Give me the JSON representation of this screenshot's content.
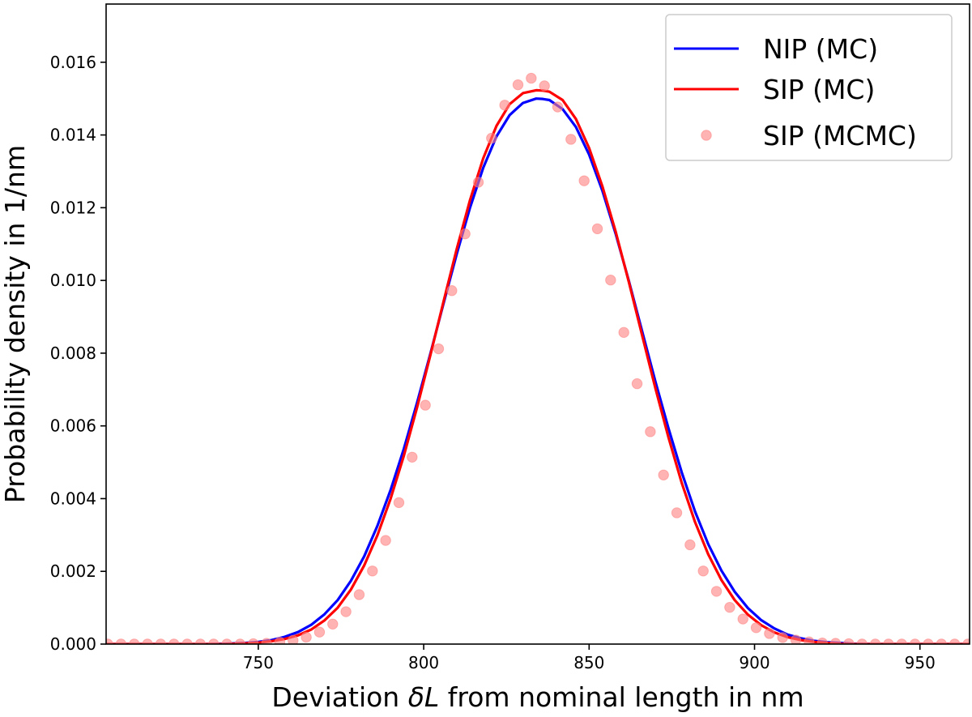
{
  "chart_data": {
    "type": "line",
    "xlabel_parts": {
      "prefix": "Deviation ",
      "symbol": "δL",
      "suffix": " from nominal length in nm"
    },
    "ylabel": "Probability density in 1/nm",
    "xlim": [
      704,
      965
    ],
    "ylim": [
      0,
      0.0176
    ],
    "xticks": [
      750,
      800,
      850,
      900,
      950
    ],
    "xtick_labels": [
      "750",
      "800",
      "850",
      "900",
      "950"
    ],
    "yticks": [
      0,
      0.002,
      0.004,
      0.006,
      0.008,
      0.01,
      0.012,
      0.014,
      0.016
    ],
    "ytick_labels": [
      "0.000",
      "0.002",
      "0.004",
      "0.006",
      "0.008",
      "0.010",
      "0.012",
      "0.014",
      "0.016"
    ],
    "grid": false,
    "legend_position": "top-right",
    "series": [
      {
        "name": "NIP (MC)",
        "kind": "line",
        "color": "#0000ff",
        "x": [
          704,
          710,
          716,
          722,
          728,
          734,
          740,
          746,
          750,
          754,
          758,
          762,
          766,
          770,
          774,
          778,
          782,
          786,
          790,
          794,
          798,
          802,
          806,
          810,
          814,
          818,
          822,
          826,
          830,
          834,
          836,
          838,
          842,
          846,
          850,
          854,
          858,
          862,
          866,
          870,
          874,
          878,
          882,
          886,
          890,
          894,
          898,
          902,
          906,
          910,
          914,
          918,
          922,
          926,
          930,
          936,
          942,
          948,
          954,
          960,
          965
        ],
        "y": [
          0,
          0,
          0,
          0,
          0,
          0,
          1e-05,
          3e-05,
          6e-05,
          0.00011,
          0.0002,
          0.00033,
          0.00053,
          0.00082,
          0.00121,
          0.00174,
          0.00241,
          0.00325,
          0.00424,
          0.00537,
          0.00664,
          0.00798,
          0.00937,
          0.01073,
          0.012,
          0.0131,
          0.01396,
          0.01455,
          0.01488,
          0.015,
          0.01499,
          0.01496,
          0.01471,
          0.01422,
          0.01346,
          0.01247,
          0.01129,
          0.00999,
          0.00861,
          0.00723,
          0.00593,
          0.00472,
          0.00365,
          0.00275,
          0.00202,
          0.00144,
          0.00099,
          0.00066,
          0.00043,
          0.00026,
          0.00016,
          9e-05,
          5e-05,
          3e-05,
          1e-05,
          0,
          0,
          0,
          0,
          0,
          0
        ]
      },
      {
        "name": "SIP (MC)",
        "kind": "line",
        "color": "#ff0000",
        "x": [
          704,
          710,
          716,
          722,
          728,
          734,
          740,
          746,
          750,
          754,
          758,
          762,
          766,
          770,
          774,
          778,
          782,
          786,
          790,
          794,
          798,
          802,
          806,
          810,
          814,
          818,
          822,
          826,
          830,
          834,
          836,
          838,
          842,
          846,
          850,
          854,
          858,
          862,
          866,
          870,
          874,
          878,
          882,
          886,
          890,
          894,
          898,
          902,
          906,
          910,
          914,
          918,
          922,
          926,
          930,
          936,
          942,
          948,
          954,
          960,
          965
        ],
        "y": [
          0,
          0,
          0,
          0,
          0,
          0,
          0,
          2e-05,
          4e-05,
          8e-05,
          0.00014,
          0.00024,
          0.0004,
          0.00065,
          0.001,
          0.0015,
          0.00216,
          0.00299,
          0.004,
          0.00518,
          0.00651,
          0.00794,
          0.00942,
          0.01087,
          0.01221,
          0.01336,
          0.01425,
          0.01485,
          0.01515,
          0.01523,
          0.01522,
          0.01519,
          0.01496,
          0.01444,
          0.01364,
          0.01259,
          0.01135,
          0.00996,
          0.0085,
          0.00705,
          0.00568,
          0.00443,
          0.00336,
          0.00247,
          0.00176,
          0.00121,
          0.00081,
          0.00052,
          0.00032,
          0.00019,
          0.00011,
          6e-05,
          3e-05,
          1e-05,
          0,
          0,
          0,
          0,
          0,
          0,
          0
        ]
      },
      {
        "name": "SIP (MCMC)",
        "kind": "scatter",
        "color": "#ff8080",
        "x": [
          704.5,
          708.5,
          712.5,
          716.5,
          720.5,
          724.5,
          728.5,
          732.5,
          736.5,
          740.5,
          744.5,
          748.5,
          752.5,
          756.5,
          760.5,
          764.5,
          768.5,
          772.5,
          776.5,
          780.5,
          784.5,
          788.5,
          792.5,
          796.5,
          800.5,
          804.5,
          808.5,
          812.5,
          816.5,
          820.5,
          824.5,
          828.5,
          832.5,
          836.5,
          840.5,
          844.5,
          848.5,
          852.5,
          856.5,
          860.5,
          864.5,
          868.5,
          872.5,
          876.5,
          880.5,
          884.5,
          888.5,
          892.5,
          896.5,
          900.5,
          904.5,
          908.5,
          912.5,
          916.5,
          920.5,
          924.5,
          928.5,
          932.5,
          936.5,
          940.5,
          944.5,
          948.5,
          952.5,
          956.5,
          960.5,
          964.5
        ],
        "y": [
          0,
          0,
          0,
          0,
          0,
          0,
          0,
          0,
          0,
          0,
          0,
          1e-05,
          2e-05,
          5e-05,
          0.0001,
          0.00019,
          0.00033,
          0.00055,
          0.00089,
          0.00136,
          0.00201,
          0.00285,
          0.00389,
          0.00514,
          0.00657,
          0.00812,
          0.00972,
          0.01128,
          0.0127,
          0.01391,
          0.01482,
          0.01538,
          0.01556,
          0.01535,
          0.01477,
          0.01388,
          0.01274,
          0.01142,
          0.01001,
          0.00857,
          0.00716,
          0.00584,
          0.00465,
          0.00361,
          0.00273,
          0.00201,
          0.00145,
          0.00101,
          0.00069,
          0.00045,
          0.00029,
          0.00018,
          0.00011,
          6e-05,
          3e-05,
          2e-05,
          1e-05,
          0,
          0,
          0,
          0,
          0,
          0,
          0,
          0,
          0
        ]
      }
    ]
  }
}
